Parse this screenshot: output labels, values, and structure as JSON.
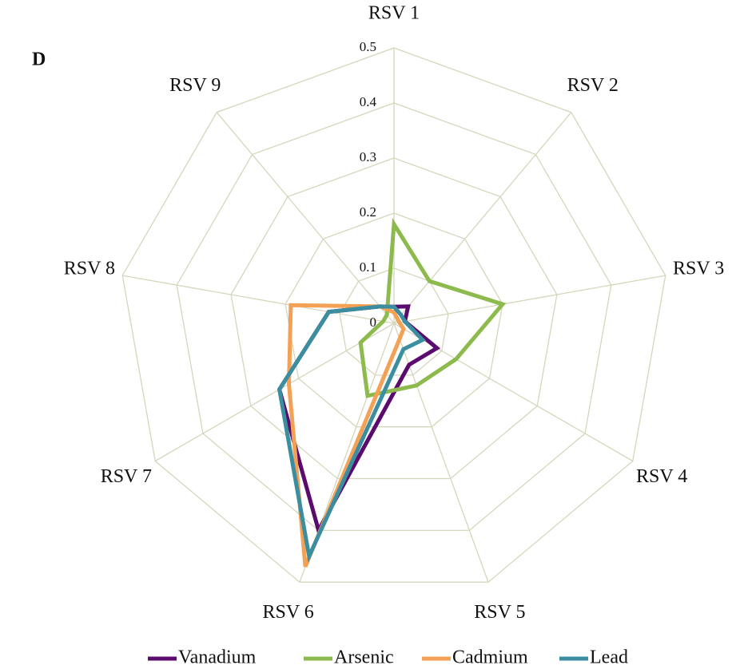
{
  "chart_data": {
    "type": "radar",
    "panel_label": "D",
    "categories": [
      "RSV 1",
      "RSV 2",
      "RSV 3",
      "RSV 4",
      "RSV 5",
      "RSV 6",
      "RSV 7",
      "RSV 8",
      "RSV 9"
    ],
    "series": [
      {
        "name": "Vanadium",
        "color": "#5a0b6d",
        "values": [
          0.03,
          0.04,
          0.02,
          0.09,
          0.08,
          0.4,
          0.24,
          0.12,
          0.04
        ]
      },
      {
        "name": "Arsenic",
        "color": "#8cba4c",
        "values": [
          0.18,
          0.1,
          0.2,
          0.13,
          0.12,
          0.14,
          0.07,
          0.02,
          0.02
        ]
      },
      {
        "name": "Cadmium",
        "color": "#f4a055",
        "values": [
          0.02,
          0.01,
          0.01,
          0.02,
          0.03,
          0.47,
          0.22,
          0.19,
          0.04
        ]
      },
      {
        "name": "Lead",
        "color": "#3a8ea0",
        "values": [
          0.03,
          0.02,
          0.02,
          0.06,
          0.05,
          0.45,
          0.24,
          0.12,
          0.04
        ]
      }
    ],
    "ylim": [
      0,
      0.5
    ],
    "yticks": [
      0,
      0.1,
      0.2,
      0.3,
      0.4,
      0.5
    ],
    "grid": true,
    "legend": "bottom"
  }
}
